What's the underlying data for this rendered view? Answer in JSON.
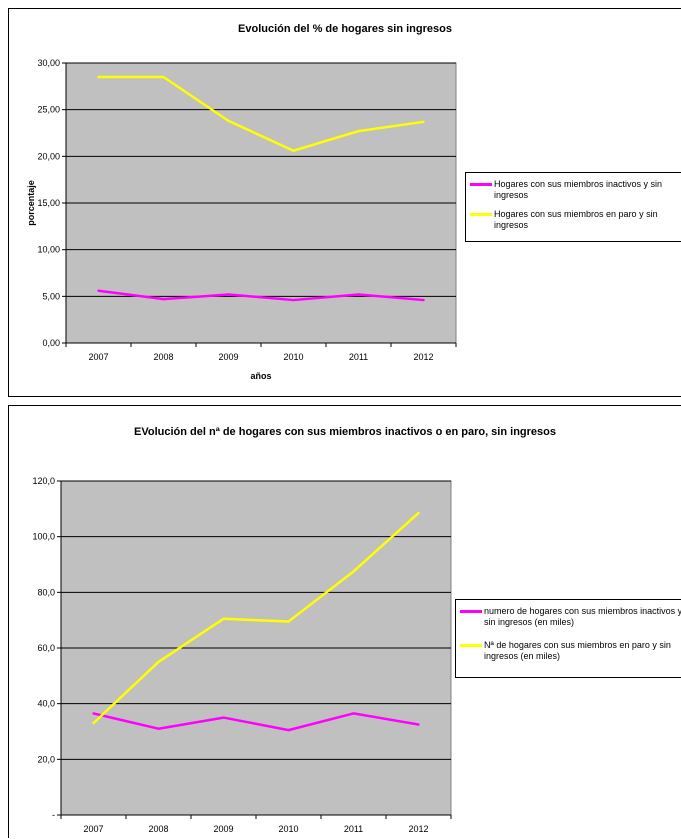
{
  "charts": [
    {
      "id": "chart1",
      "chart_data": {
        "type": "line",
        "title": "Evolución del % de hogares sin ingresos",
        "xlabel": "años",
        "ylabel": "porcentaje",
        "categories": [
          "2007",
          "2008",
          "2009",
          "2010",
          "2011",
          "2012"
        ],
        "ylim": [
          0,
          30
        ],
        "ystep": 5,
        "ytick_labels": [
          "0,00",
          "5,00",
          "10,00",
          "15,00",
          "20,00",
          "25,00",
          "30,00"
        ],
        "grid": true,
        "legend_position": "right",
        "plot_background": "#c0c0c0",
        "series": [
          {
            "name": "Hogares con sus miembros inactivos y sin ingresos",
            "color": "#ff00ff",
            "values": [
              5.6,
              4.7,
              5.2,
              4.6,
              5.2,
              4.6
            ]
          },
          {
            "name": "Hogares con sus miembros en paro y sin ingresos",
            "color": "#ffff00",
            "values": [
              28.5,
              28.5,
              23.8,
              20.6,
              22.7,
              23.7
            ]
          }
        ]
      }
    },
    {
      "id": "chart2",
      "chart_data": {
        "type": "line",
        "title": "EVolución del nª de hogares con sus miembros inactivos o en paro, sin ingresos",
        "xlabel": "",
        "ylabel": "",
        "categories": [
          "2007",
          "2008",
          "2009",
          "2010",
          "2011",
          "2012"
        ],
        "ylim": [
          0,
          120
        ],
        "ystep": 20,
        "ytick_labels": [
          "-",
          "20,0",
          "40,0",
          "60,0",
          "80,0",
          "100,0",
          "120,0"
        ],
        "grid": true,
        "legend_position": "right",
        "plot_background": "#c0c0c0",
        "series": [
          {
            "name": "numero de hogares con sus miembros inactivos y sin ingresos (en miles)",
            "color": "#ff00ff",
            "values": [
              36.5,
              31.0,
              35.0,
              30.5,
              36.5,
              32.5
            ]
          },
          {
            "name": "Nª de hogares con sus miembros en paro y sin ingresos (en miles)",
            "color": "#ffff00",
            "values": [
              33.0,
              55.0,
              70.5,
              69.5,
              87.5,
              108.5
            ]
          }
        ]
      }
    }
  ]
}
